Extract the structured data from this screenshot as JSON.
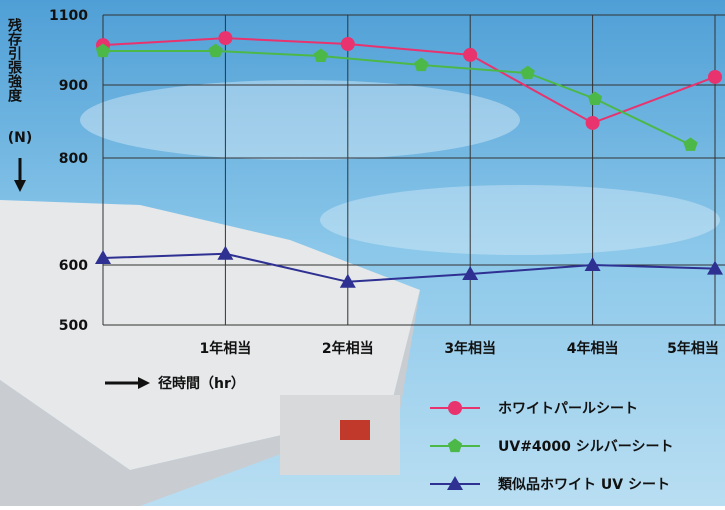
{
  "chart_data": {
    "type": "line",
    "y_label": "残存引張強度",
    "y_unit": "(N)",
    "x_label": "径時間（hr）",
    "xlim": [
      0,
      5
    ],
    "xticks": [
      {
        "value": 1,
        "label": "1年相当"
      },
      {
        "value": 2,
        "label": "2年相当"
      },
      {
        "value": 3,
        "label": "3年相当"
      },
      {
        "value": 4,
        "label": "4年相当"
      },
      {
        "value": 5,
        "label": "5年相当"
      }
    ],
    "ylim": [
      500,
      1100
    ],
    "yticks": [
      500,
      600,
      800,
      900,
      1100
    ],
    "grid": true,
    "series": [
      {
        "name": "ホワイトパールシート",
        "color": "#e8336e",
        "marker": "circle",
        "x": [
          0,
          1,
          2,
          3,
          4,
          5
        ],
        "values": [
          1014,
          1034,
          1017,
          986,
          848,
          923
        ]
      },
      {
        "name": "UV#4000 シルバーシート",
        "color": "#4cb848",
        "marker": "pentagon",
        "x": [
          0,
          0.92,
          1.78,
          2.6,
          3.47,
          4.02,
          4.8
        ],
        "values": [
          997,
          997,
          983,
          957,
          934,
          881,
          818
        ]
      },
      {
        "name": "類似品ホワイト UV シート",
        "color": "#2e3192",
        "marker": "triangle",
        "x": [
          0,
          1,
          2,
          3,
          4,
          5
        ],
        "values": [
          613,
          621,
          572,
          585,
          600,
          594
        ]
      }
    ]
  }
}
